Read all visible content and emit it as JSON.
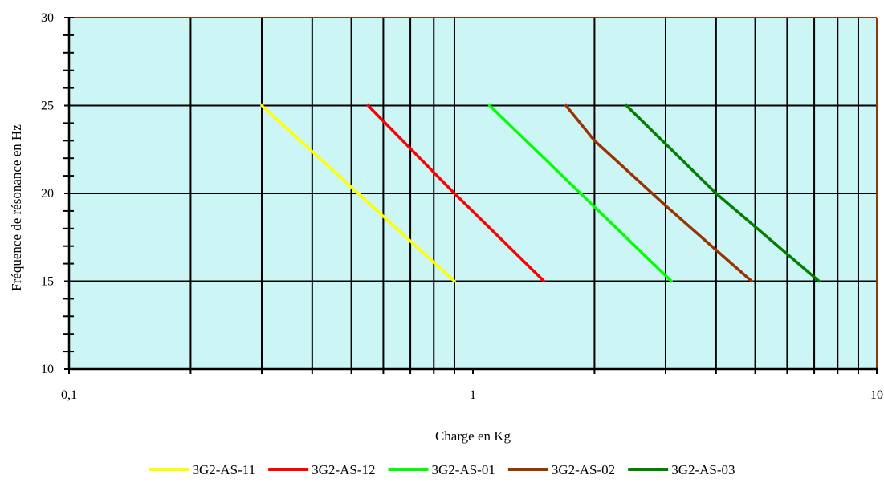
{
  "chart_data": {
    "type": "line",
    "title": "",
    "xlabel": "Charge en Kg",
    "ylabel": "Fréquence de résonance en Hz",
    "x_scale": "log",
    "xlim": [
      0.1,
      10
    ],
    "ylim": [
      10,
      30
    ],
    "x_tick_labels": [
      {
        "value": 0.1,
        "label": "0,1"
      },
      {
        "value": 1,
        "label": "1"
      },
      {
        "value": 10,
        "label": "10"
      }
    ],
    "y_tick_labels": [
      {
        "value": 10,
        "label": "10"
      },
      {
        "value": 15,
        "label": "15"
      },
      {
        "value": 20,
        "label": "20"
      },
      {
        "value": 25,
        "label": "25"
      },
      {
        "value": 30,
        "label": "30"
      }
    ],
    "grid": true,
    "legend_position": "bottom",
    "plot_background": "#ccf5f5",
    "frame_color": "#8b3a0e",
    "series": [
      {
        "name": "3G2-AS-11",
        "color": "#ffff00",
        "points": [
          [
            0.3,
            25
          ],
          [
            0.9,
            15
          ]
        ]
      },
      {
        "name": "3G2-AS-12",
        "color": "#ff0000",
        "points": [
          [
            0.55,
            25
          ],
          [
            0.9,
            20
          ],
          [
            1.5,
            15
          ]
        ]
      },
      {
        "name": "3G2-AS-01",
        "color": "#00ff00",
        "points": [
          [
            1.1,
            25
          ],
          [
            3.1,
            15
          ]
        ]
      },
      {
        "name": "3G2-AS-02",
        "color": "#993300",
        "points": [
          [
            1.7,
            25
          ],
          [
            2.0,
            23
          ],
          [
            3.0,
            19.3
          ],
          [
            4.9,
            15
          ]
        ]
      },
      {
        "name": "3G2-AS-03",
        "color": "#008000",
        "points": [
          [
            2.4,
            25
          ],
          [
            4.0,
            20
          ],
          [
            7.2,
            15
          ]
        ]
      }
    ]
  }
}
